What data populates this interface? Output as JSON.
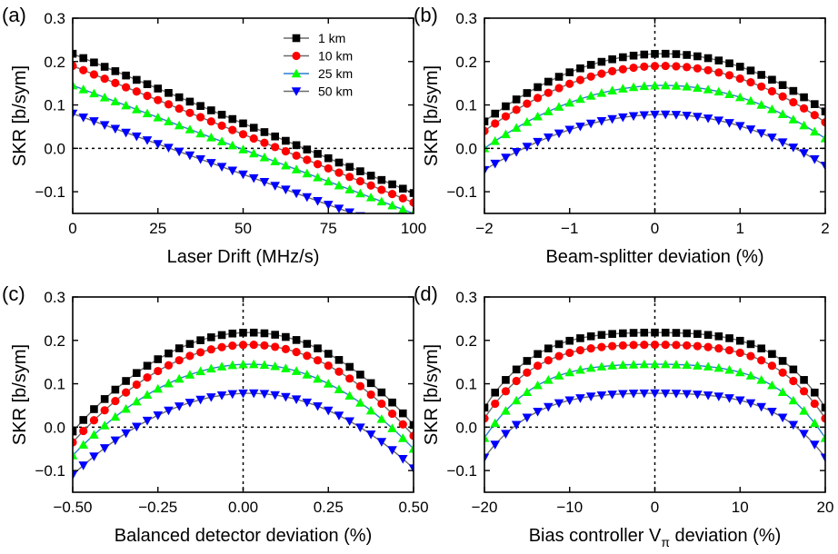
{
  "chart_data": [
    {
      "panel_label": "(a)",
      "type": "line",
      "xlabel": "Laser Drift (MHz/s)",
      "ylabel": "SKR [b/sym]",
      "xlim": [
        0,
        100
      ],
      "ylim": [
        -0.15,
        0.3
      ],
      "xticks": [
        0,
        25,
        50,
        75,
        100
      ],
      "xtick_labels": [
        "0",
        "25",
        "50",
        "75",
        "100"
      ],
      "yticks": [
        -0.1,
        0.0,
        0.1,
        0.2,
        0.3
      ],
      "ytick_labels": [
        "−0.1",
        "0.0",
        "0.1",
        "0.2",
        "0.3"
      ],
      "hline": 0,
      "vline": null,
      "legend": {
        "placement": "top-right"
      },
      "series": [
        {
          "name": "1 km",
          "color": "#000000",
          "marker": "square",
          "model": "linear",
          "x_range": [
            0,
            100
          ],
          "n": 33,
          "y0": 0.218,
          "y1": -0.103
        },
        {
          "name": "10 km",
          "color": "#ff0000",
          "marker": "circle",
          "model": "linear",
          "x_range": [
            0,
            100
          ],
          "n": 33,
          "y0": 0.19,
          "y1": -0.125
        },
        {
          "name": "25 km",
          "color": "#00ff00",
          "marker": "triangle-up",
          "model": "linear",
          "x_range": [
            0,
            100
          ],
          "n": 33,
          "y0": 0.145,
          "y1": -0.15
        },
        {
          "name": "50 km",
          "color": "#0000ff",
          "marker": "triangle-down",
          "model": "linear",
          "x_range": [
            0,
            100
          ],
          "n": 33,
          "y0": 0.08,
          "y1": -0.2
        }
      ]
    },
    {
      "panel_label": "(b)",
      "type": "line",
      "xlabel": "Beam-splitter deviation (%)",
      "ylabel": "SKR [b/sym]",
      "xlim": [
        -2,
        2
      ],
      "ylim": [
        -0.15,
        0.3
      ],
      "xticks": [
        -2,
        -1,
        0,
        1,
        2
      ],
      "xtick_labels": [
        "−2",
        "−1",
        "0",
        "1",
        "2"
      ],
      "yticks": [
        -0.1,
        0.0,
        0.1,
        0.2,
        0.3
      ],
      "ytick_labels": [
        "−0.1",
        "0.0",
        "0.1",
        "0.2",
        "0.3"
      ],
      "hline": 0,
      "vline": 0,
      "series": [
        {
          "color": "#000000",
          "marker": "square",
          "model": "quadratic",
          "x_range": [
            -2,
            2
          ],
          "n": 33,
          "peak_x": 0.1,
          "peak_y": 0.218,
          "y_left": 0.062,
          "y_right": 0.085
        },
        {
          "color": "#ff0000",
          "marker": "circle",
          "model": "quadratic",
          "x_range": [
            -2,
            2
          ],
          "n": 33,
          "peak_x": 0.1,
          "peak_y": 0.19,
          "y_left": 0.04,
          "y_right": 0.06
        },
        {
          "color": "#00ff00",
          "marker": "triangle-up",
          "model": "quadratic",
          "x_range": [
            -2,
            2
          ],
          "n": 33,
          "peak_x": 0.1,
          "peak_y": 0.145,
          "y_left": 0.0,
          "y_right": 0.023
        },
        {
          "color": "#0000ff",
          "marker": "triangle-down",
          "model": "quadratic",
          "x_range": [
            -2,
            2
          ],
          "n": 33,
          "peak_x": 0.1,
          "peak_y": 0.078,
          "y_left": -0.05,
          "y_right": -0.04
        }
      ]
    },
    {
      "panel_label": "(c)",
      "type": "line",
      "xlabel": "Balanced detector deviation (%)",
      "ylabel": "SKR [b/sym]",
      "xlim": [
        -0.5,
        0.5
      ],
      "ylim": [
        -0.15,
        0.3
      ],
      "xticks": [
        -0.5,
        -0.25,
        0,
        0.25,
        0.5
      ],
      "xtick_labels": [
        "−0.50",
        "−0.25",
        "0.00",
        "0.25",
        "0.50"
      ],
      "yticks": [
        -0.1,
        0.0,
        0.1,
        0.2,
        0.3
      ],
      "ytick_labels": [
        "−0.1",
        "0.0",
        "0.1",
        "0.2",
        "0.3"
      ],
      "hline": 0,
      "vline": 0,
      "series": [
        {
          "color": "#000000",
          "marker": "square",
          "model": "quadratic",
          "x_range": [
            -0.5,
            0.5
          ],
          "n": 33,
          "peak_x": 0.02,
          "peak_y": 0.218,
          "y_left": -0.01,
          "y_right": 0.005
        },
        {
          "color": "#ff0000",
          "marker": "circle",
          "model": "quadratic",
          "x_range": [
            -0.5,
            0.5
          ],
          "n": 33,
          "peak_x": 0.02,
          "peak_y": 0.19,
          "y_left": -0.035,
          "y_right": -0.02
        },
        {
          "color": "#00ff00",
          "marker": "triangle-up",
          "model": "quadratic",
          "x_range": [
            -0.5,
            0.5
          ],
          "n": 33,
          "peak_x": 0.02,
          "peak_y": 0.145,
          "y_left": -0.065,
          "y_right": -0.05
        },
        {
          "color": "#0000ff",
          "marker": "triangle-down",
          "model": "quadratic",
          "x_range": [
            -0.5,
            0.5
          ],
          "n": 33,
          "peak_x": 0.02,
          "peak_y": 0.078,
          "y_left": -0.11,
          "y_right": -0.095
        }
      ]
    },
    {
      "panel_label": "(d)",
      "type": "line",
      "xlabel_main": "Bias controller V",
      "xlabel_sub": "π",
      "xlabel_tail": " deviation (%)",
      "ylabel": "SKR [b/sym]",
      "xlim": [
        -20,
        20
      ],
      "ylim": [
        -0.15,
        0.3
      ],
      "xticks": [
        -20,
        -10,
        0,
        10,
        20
      ],
      "xtick_labels": [
        "−20",
        "−10",
        "0",
        "10",
        "20"
      ],
      "yticks": [
        -0.1,
        0.0,
        0.1,
        0.2,
        0.3
      ],
      "ytick_labels": [
        "−0.1",
        "0.0",
        "0.1",
        "0.2",
        "0.3"
      ],
      "hline": 0,
      "vline": 0,
      "series": [
        {
          "color": "#000000",
          "marker": "square",
          "model": "quartic",
          "x_range": [
            -20,
            20
          ],
          "n": 33,
          "peak_x": 0,
          "peak_y": 0.218,
          "y_edge": 0.045
        },
        {
          "color": "#ff0000",
          "marker": "circle",
          "model": "quartic",
          "x_range": [
            -20,
            20
          ],
          "n": 33,
          "peak_x": 0,
          "peak_y": 0.19,
          "y_edge": 0.02
        },
        {
          "color": "#00ff00",
          "marker": "triangle-up",
          "model": "quartic",
          "x_range": [
            -20,
            20
          ],
          "n": 33,
          "peak_x": 0,
          "peak_y": 0.145,
          "y_edge": -0.025
        },
        {
          "color": "#0000ff",
          "marker": "triangle-down",
          "model": "quartic",
          "x_range": [
            -20,
            20
          ],
          "n": 33,
          "peak_x": 0,
          "peak_y": 0.078,
          "y_edge": -0.07
        }
      ]
    }
  ]
}
